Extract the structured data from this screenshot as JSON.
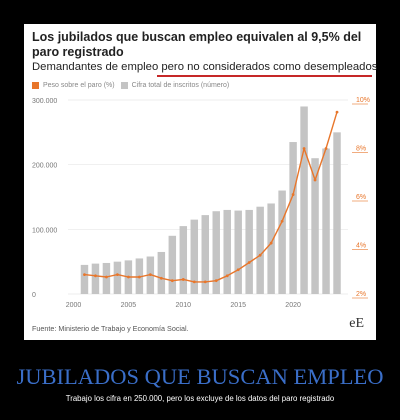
{
  "card": {
    "title": "Los jubilados que buscan empleo equivalen al 9,5% del paro registrado",
    "subtitle": "Demandantes de empleo pero no considerados como desempleados",
    "legend": [
      {
        "label": "Peso sobre el paro (%)",
        "color": "#e8762b"
      },
      {
        "label": "Cifra total de inscritos (número)",
        "color": "#c4c4c4"
      }
    ],
    "source": "Fuente: Ministerio de Trabajo y Economía Social.",
    "logo": "eE"
  },
  "caption": {
    "headline": "JUBILADOS QUE BUSCAN EMPLEO",
    "subline": "Trabajo los cifra en 250.000, pero los excluye de los datos del paro registrado"
  },
  "chart_data": {
    "type": "bar+line",
    "title": "Los jubilados que buscan empleo equivalen al 9,5% del paro registrado",
    "subtitle": "Demandantes de empleo pero no considerados como desempleados",
    "x": [
      2001,
      2002,
      2003,
      2004,
      2005,
      2006,
      2007,
      2008,
      2009,
      2010,
      2011,
      2012,
      2013,
      2014,
      2015,
      2016,
      2017,
      2018,
      2019,
      2020,
      2021,
      2022,
      2023,
      2024
    ],
    "x_ticks": [
      "2000",
      "2005",
      "2010",
      "2015",
      "2020"
    ],
    "x_tick_values": [
      2000,
      2005,
      2010,
      2015,
      2020
    ],
    "xlim": [
      1999.5,
      2025
    ],
    "series": [
      {
        "name": "Cifra total de inscritos (número)",
        "type": "bar",
        "axis": "left",
        "color": "#c4c4c4",
        "values": [
          45000,
          47000,
          48000,
          50000,
          52000,
          55000,
          58000,
          65000,
          90000,
          105000,
          115000,
          122000,
          128000,
          130000,
          129000,
          130000,
          135000,
          140000,
          160000,
          235000,
          290000,
          210000,
          225000,
          250000
        ]
      },
      {
        "name": "Peso sobre el paro (%)",
        "type": "line",
        "axis": "right",
        "color": "#e8762b",
        "values": [
          2.8,
          2.75,
          2.7,
          2.8,
          2.7,
          2.7,
          2.8,
          2.65,
          2.55,
          2.6,
          2.5,
          2.5,
          2.55,
          2.75,
          3.0,
          3.3,
          3.6,
          4.1,
          5.0,
          6.1,
          8.0,
          6.7,
          8.0,
          9.5
        ]
      }
    ],
    "y_left": {
      "ticks": [
        "300.000",
        "200.000",
        "100.000",
        "0"
      ],
      "tick_values": [
        300000,
        200000,
        100000,
        0
      ],
      "lim": [
        0,
        300000
      ]
    },
    "y_right": {
      "ticks": [
        "10%",
        "8%",
        "6%",
        "4%",
        "2%"
      ],
      "tick_values": [
        10,
        8,
        6,
        4,
        2
      ],
      "lim": [
        2,
        10
      ]
    },
    "grid": true,
    "legend_position": "top-left"
  }
}
